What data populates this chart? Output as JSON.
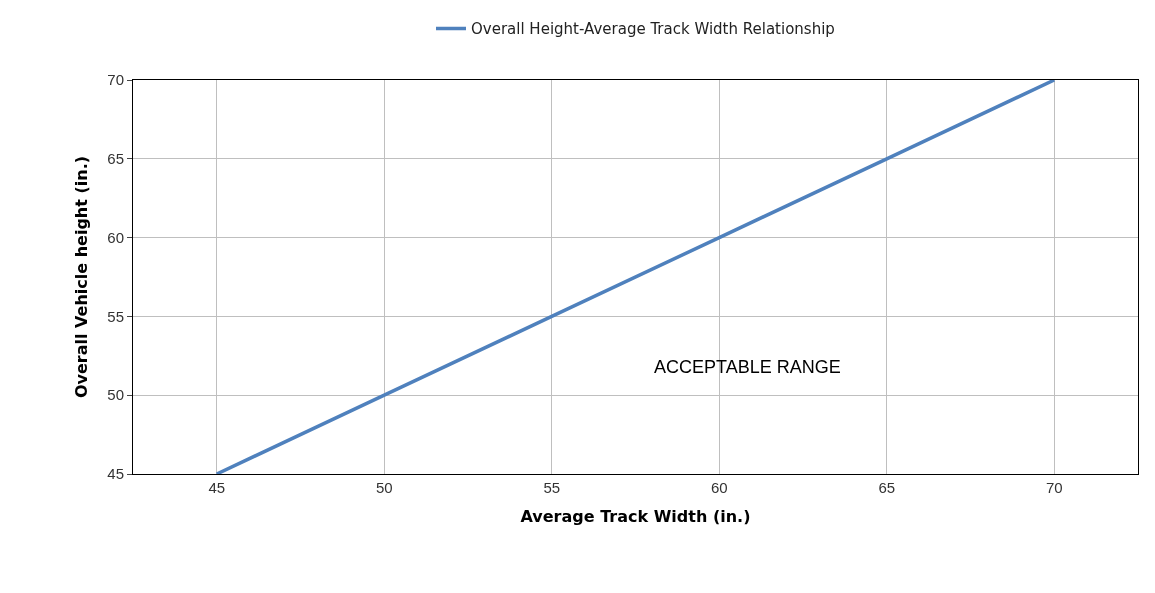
{
  "chart_data": {
    "type": "line",
    "xlabel": "Average Track Width (in.)",
    "ylabel": "Overall Vehicle height (in.)",
    "categories": [
      "45",
      "50",
      "55",
      "60",
      "65",
      "70"
    ],
    "series": [
      {
        "name": "Overall Height-Average Track Width Relationship",
        "color": "#4f81bd",
        "values": [
          45,
          50,
          55,
          60,
          65,
          70
        ]
      }
    ],
    "ylim": [
      45,
      70
    ],
    "yticks": [
      45,
      50,
      55,
      60,
      65,
      70
    ],
    "grid": true,
    "legend": "top",
    "marker": "none",
    "line_style": "solid",
    "annotations": [
      "ACCEPTABLE RANGE"
    ]
  }
}
